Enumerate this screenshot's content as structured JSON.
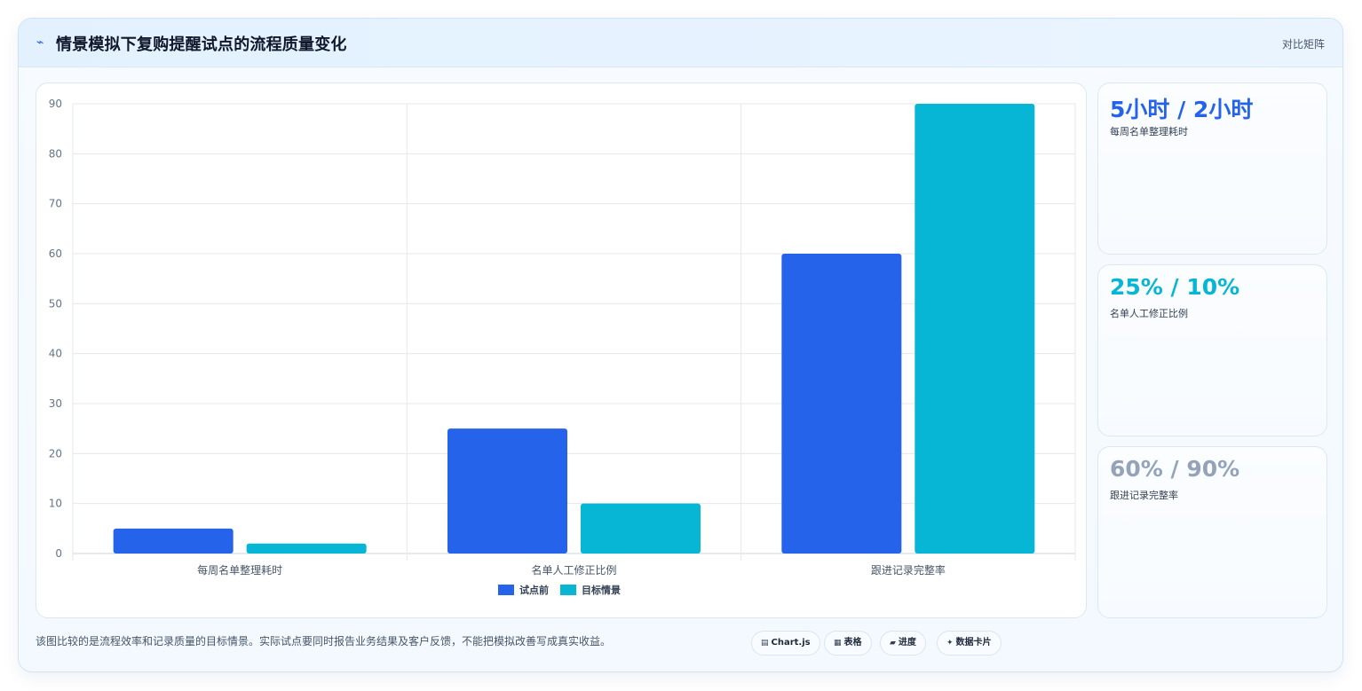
{
  "header": {
    "title": "情景模拟下复购提醒试点的流程质量变化",
    "tag": "对比矩阵"
  },
  "chart_data": {
    "type": "bar",
    "categories": [
      "每周名单整理耗时",
      "名单人工修正比例",
      "跟进记录完整率"
    ],
    "series": [
      {
        "name": "试点前",
        "values": [
          5,
          25,
          60
        ],
        "color": "#2563eb"
      },
      {
        "name": "目标情景",
        "values": [
          2,
          10,
          90
        ],
        "color": "#06b6d4"
      }
    ],
    "ylim": [
      0,
      90
    ],
    "yticks": [
      0,
      10,
      20,
      30,
      40,
      50,
      60,
      70,
      80,
      90
    ],
    "grid": true,
    "legend": "bottom"
  },
  "kpis": [
    {
      "value": "5小时 / 2小时",
      "label": "每周名单整理耗时",
      "color": "#2563eb"
    },
    {
      "value": "25% / 10%",
      "label": "名单人工修正比例",
      "color": "#06b6d4"
    },
    {
      "value": "60% / 90%",
      "label": "跟进记录完整率",
      "color": "#94a3b8"
    }
  ],
  "footnote": "该图比较的是流程效率和记录质量的目标情景。实际试点要同时报告业务结果及客户反馈，不能把模拟改善写成真实收益。",
  "pills": [
    {
      "icon": "▤",
      "label": "Chart.js"
    },
    {
      "icon": "▦",
      "label": "表格"
    },
    {
      "icon": "▰",
      "label": "进度"
    },
    {
      "icon": "✦",
      "label": "数据卡片"
    }
  ]
}
